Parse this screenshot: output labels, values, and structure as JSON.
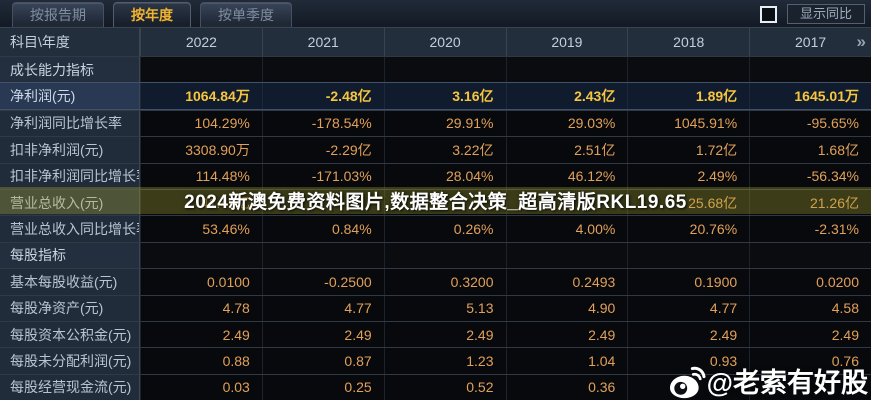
{
  "tabs": [
    {
      "label": "按报告期",
      "active": false
    },
    {
      "label": "按年度",
      "active": true
    },
    {
      "label": "按单季度",
      "active": false
    }
  ],
  "controls": {
    "show_yoy": "显示同比",
    "yoy_checked": false
  },
  "table": {
    "corner_label": "科目\\年度",
    "years": [
      "2022",
      "2021",
      "2020",
      "2019",
      "2018",
      "2017"
    ],
    "more_icon": "»",
    "rows": [
      {
        "type": "section",
        "label": "成长能力指标",
        "values": [
          "",
          "",
          "",
          "",
          "",
          ""
        ]
      },
      {
        "type": "data",
        "highlight": true,
        "label": "净利润(元)",
        "values": [
          "1064.84万",
          "-2.48亿",
          "3.16亿",
          "2.43亿",
          "1.89亿",
          "1645.01万"
        ]
      },
      {
        "type": "data",
        "highlight": false,
        "label": "净利润同比增长率",
        "values": [
          "104.29%",
          "-178.54%",
          "29.91%",
          "29.03%",
          "1045.91%",
          "-95.65%"
        ]
      },
      {
        "type": "data",
        "highlight": false,
        "label": "扣非净利润(元)",
        "values": [
          "3308.90万",
          "-2.29亿",
          "3.22亿",
          "2.51亿",
          "1.72亿",
          "1.68亿"
        ]
      },
      {
        "type": "data",
        "highlight": false,
        "label": "扣非净利润同比增长率",
        "values": [
          "114.48%",
          "-171.03%",
          "28.04%",
          "46.12%",
          "2.49%",
          "-56.34%"
        ]
      },
      {
        "type": "data",
        "highlight": false,
        "label": "营业总收入(元)",
        "values": [
          "41.43亿",
          "",
          "",
          "",
          "25.68亿",
          "21.26亿"
        ]
      },
      {
        "type": "data",
        "highlight": false,
        "label": "营业总收入同比增长率",
        "values": [
          "53.46%",
          "0.84%",
          "0.26%",
          "4.00%",
          "20.76%",
          "-2.31%"
        ]
      },
      {
        "type": "section",
        "label": "每股指标",
        "values": [
          "",
          "",
          "",
          "",
          "",
          ""
        ]
      },
      {
        "type": "data",
        "highlight": false,
        "label": "基本每股收益(元)",
        "values": [
          "0.0100",
          "-0.2500",
          "0.3200",
          "0.2493",
          "0.1900",
          "0.0200"
        ]
      },
      {
        "type": "data",
        "highlight": false,
        "label": "每股净资产(元)",
        "values": [
          "4.78",
          "4.77",
          "5.13",
          "4.90",
          "4.77",
          "4.58"
        ]
      },
      {
        "type": "data",
        "highlight": false,
        "label": "每股资本公积金(元)",
        "values": [
          "2.49",
          "2.49",
          "2.49",
          "2.49",
          "2.49",
          "2.49"
        ]
      },
      {
        "type": "data",
        "highlight": false,
        "label": "每股未分配利润(元)",
        "values": [
          "0.88",
          "0.87",
          "1.23",
          "1.04",
          "0.93",
          "0.76"
        ]
      },
      {
        "type": "data",
        "highlight": false,
        "label": "每股经营现金流(元)",
        "values": [
          "0.03",
          "0.25",
          "0.52",
          "0.36",
          "",
          ""
        ]
      }
    ]
  },
  "watermarks": {
    "banner": "2024新澳免费资料图片,数据整合决策_超高清版RKL19.65",
    "weibo": "@老索有好股"
  },
  "colors": {
    "accent_gold": "#f1b32f",
    "value_amber": "#e2a058",
    "highlight_value": "#f7c63e",
    "banner_olive": "rgba(170,166,48,0.33)",
    "label_bg": "#212c3b",
    "value_bg": "#07090d"
  }
}
